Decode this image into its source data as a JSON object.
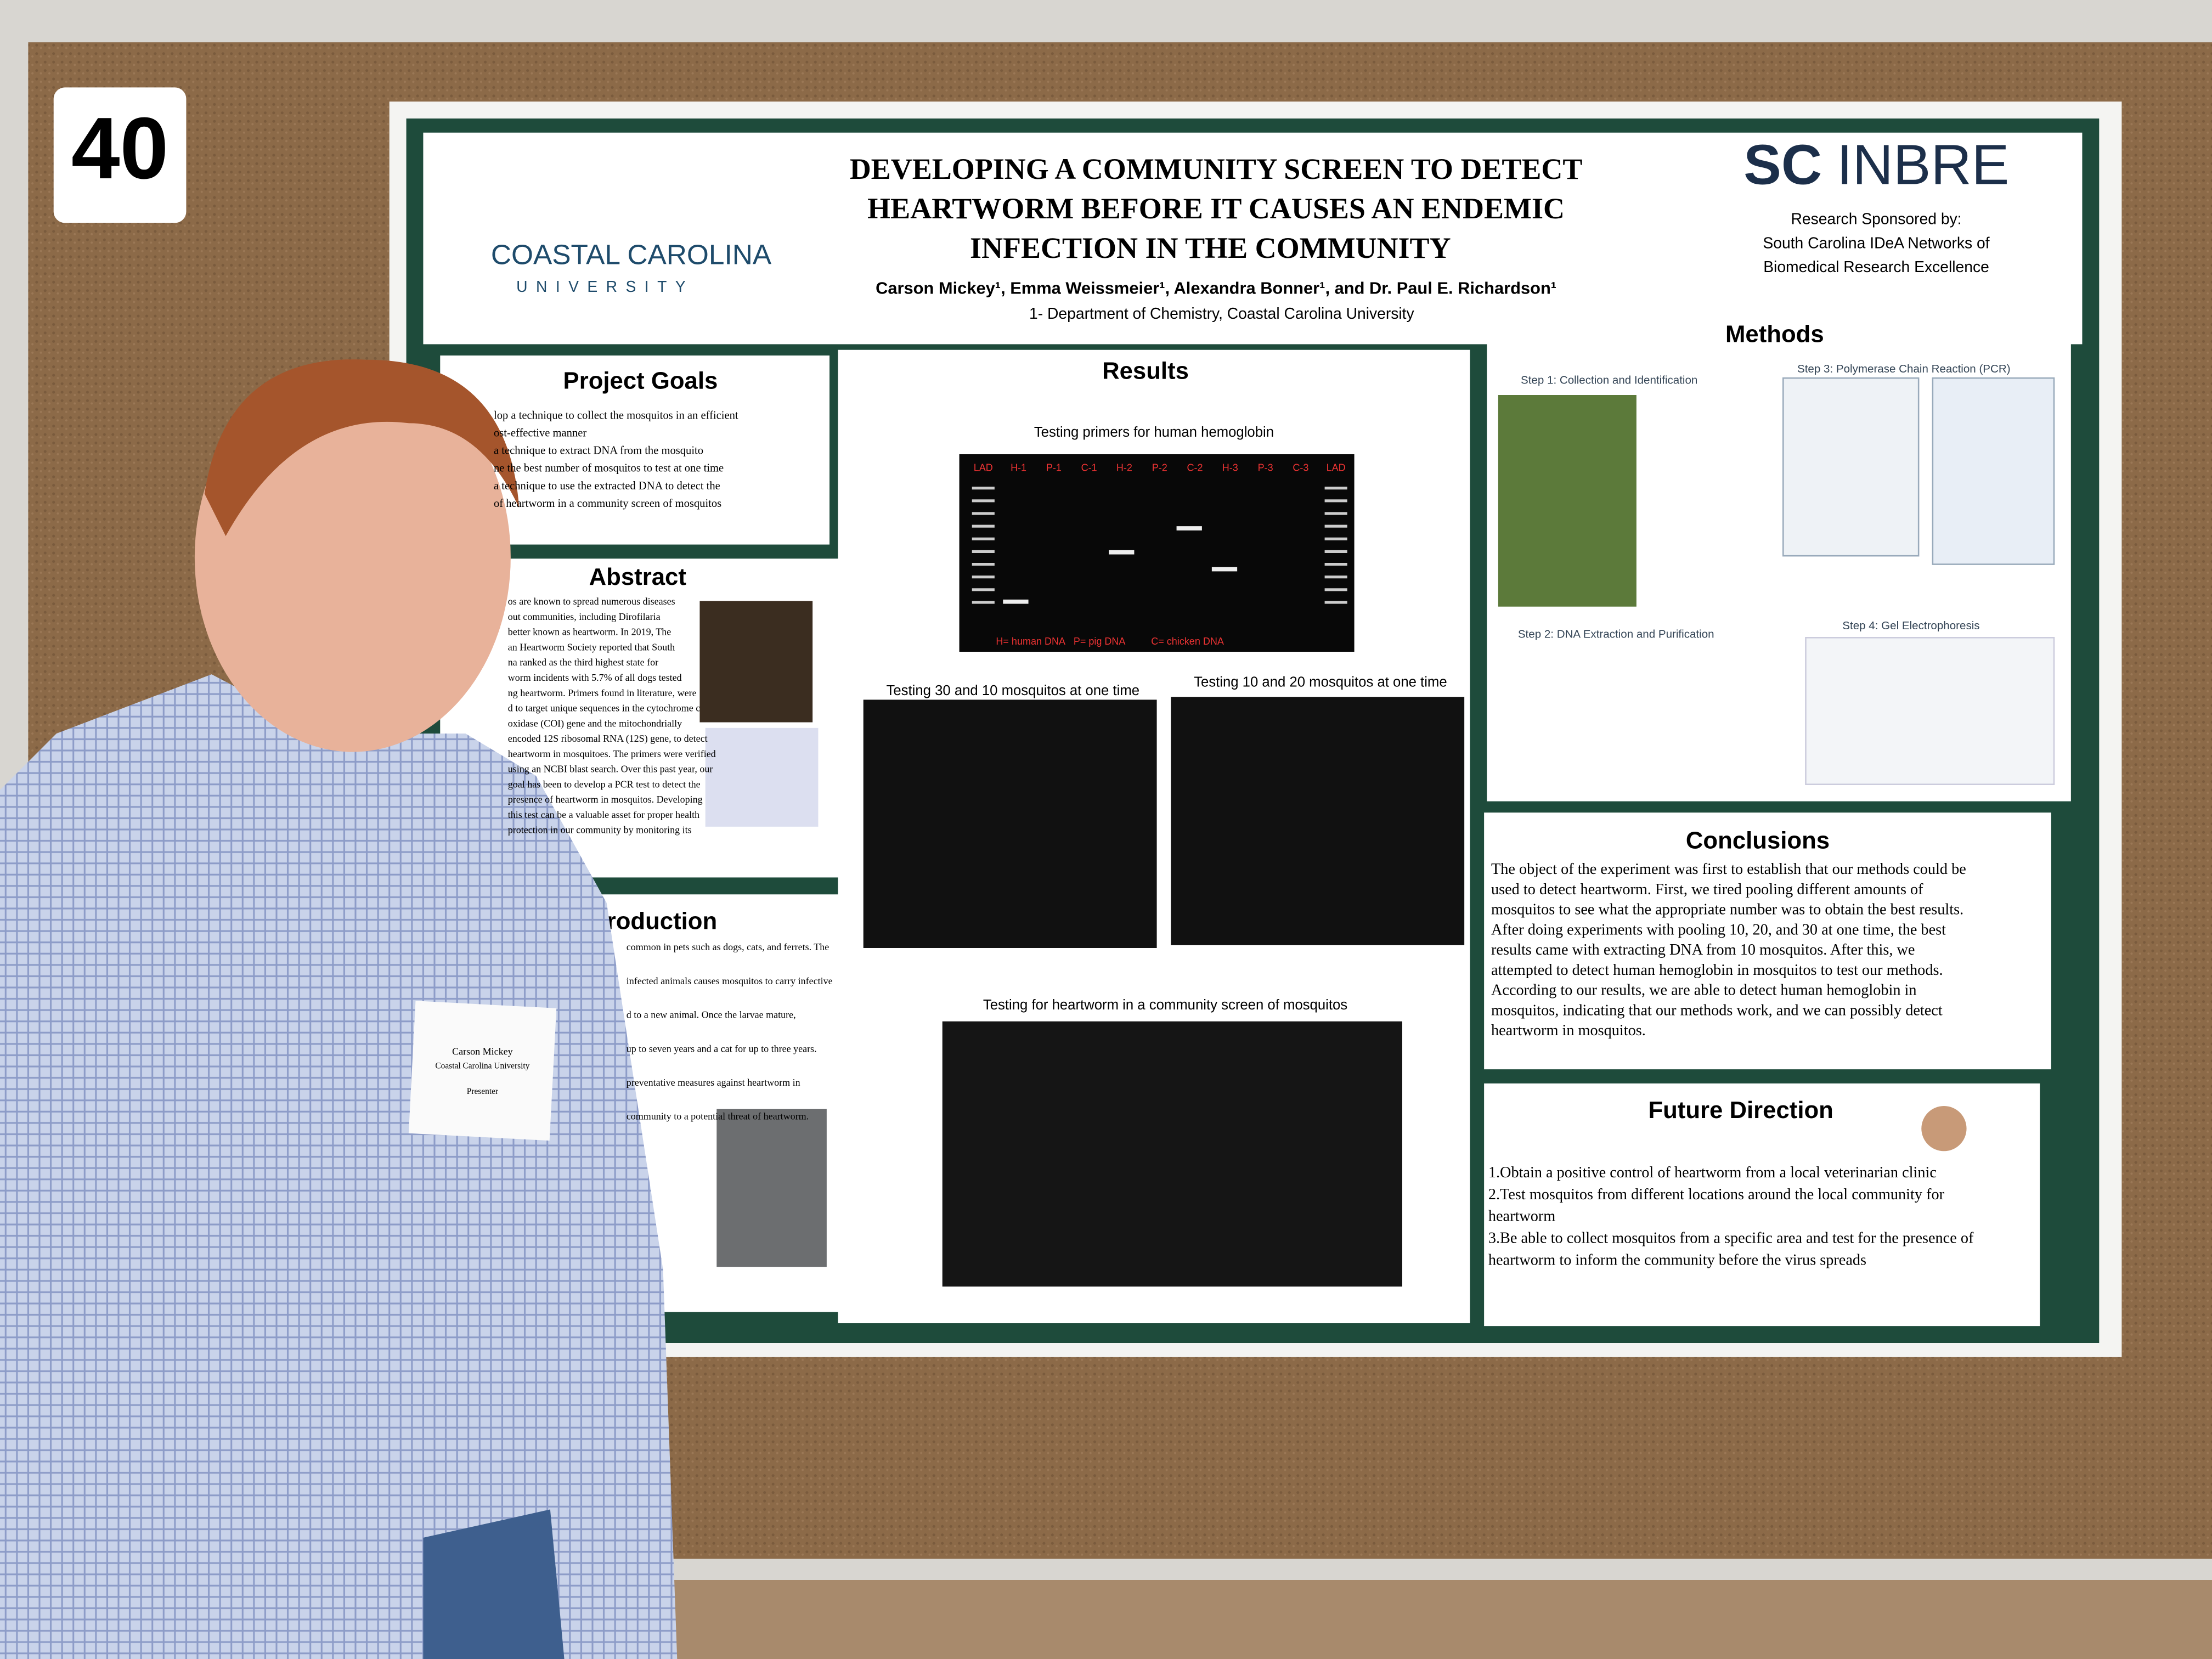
{
  "sign": "40",
  "poster": {
    "title_lines": [
      "DEVELOPING A COMMUNITY SCREEN TO DETECT",
      "HEARTWORM BEFORE IT CAUSES AN ENDEMIC",
      "INFECTION IN THE COMMUNITY"
    ],
    "authors": "Carson Mickey¹, Emma Weissmeier¹, Alexandra Bonner¹, and Dr. Paul E. Richardson¹",
    "affiliation": "1- Department of Chemistry, Coastal Carolina University",
    "logo_left": [
      "COASTAL CAROLINA",
      "UNIVERSITY"
    ],
    "logo_right": [
      "SC",
      "INBRE"
    ],
    "sponsor": [
      "Research Sponsored by:",
      "South Carolina IDeA Networks of",
      "Biomedical Research Excellence"
    ],
    "goals": {
      "heading": "Project Goals",
      "lines": [
        "lop a technique to collect the mosquitos in an efficient",
        "ost-effective manner",
        "a technique to extract DNA from the mosquito",
        "ne the best number of mosquitos to test at one time",
        "a technique to use the extracted DNA to detect the",
        "of heartworm in a community screen of mosquitos"
      ]
    },
    "abstract": {
      "heading": "Abstract",
      "lines": [
        "os are known to spread numerous diseases",
        "out communities, including Dirofilaria",
        "better known as heartworm. In 2019, The",
        "an Heartworm Society reported that South",
        "na ranked as the third highest state for",
        "worm incidents with 5.7% of all dogs tested",
        "ng heartworm. Primers found in literature, were",
        "d to target unique sequences in the cytochrome c",
        "oxidase (COI) gene and the mitochondrially",
        "encoded 12S ribosomal RNA (12S) gene, to detect",
        "heartworm in mosquitoes. The primers were verified",
        "using an NCBI blast search. Over this past year, our",
        "goal has been to develop a PCR test to detect the",
        "presence of heartworm in mosquitos. Developing",
        "this test can be a valuable asset for proper health",
        "protection in our community by monitoring its"
      ]
    },
    "introduction": {
      "heading": "roduction",
      "lines": [
        "common in pets such as dogs, cats, and ferrets. The",
        "infected animals causes mosquitos to carry infective",
        "d to a new animal. Once the larvae mature,",
        "up to seven years and a cat for up to three years.",
        "preventative measures against heartworm in",
        "community to a potential threat of heartworm."
      ]
    },
    "results": {
      "heading": "Results",
      "gel1": {
        "caption": "Testing primers for human hemoglobin",
        "lanes": [
          "LAD",
          "H-1",
          "P-1",
          "C-1",
          "H-2",
          "P-2",
          "C-2",
          "H-3",
          "P-3",
          "C-3",
          "LAD"
        ],
        "legend": [
          "H= human DNA",
          "P= pig DNA",
          "C= chicken DNA"
        ]
      },
      "gel2": {
        "caption": "Testing 30 and 10 mosquitos at one time"
      },
      "gel3": {
        "caption": "Testing 10 and 20 mosquitos at one time"
      },
      "gel4": {
        "caption": "Testing for heartworm in a community screen of mosquitos"
      }
    },
    "methods": {
      "heading": "Methods",
      "steps": [
        "Step 1: Collection and Identification",
        "Step 3: Polymerase Chain Reaction (PCR)",
        "Step 2: DNA Extraction and Purification",
        "Step 4: Gel Electrophoresis"
      ]
    },
    "conclusions": {
      "heading": "Conclusions",
      "lines": [
        "The object of the experiment was first to establish that our methods could be",
        "used to detect heartworm. First, we tired pooling different amounts of",
        "mosquitos to see what the appropriate number was to obtain the best results.",
        "After doing experiments with pooling 10, 20, and 30 at one time, the best",
        "results came with extracting DNA from 10 mosquitos. After this, we",
        "attempted to detect human hemoglobin in mosquitos to test our methods.",
        "According to our results, we are able to detect human hemoglobin in",
        "mosquitos, indicating that our methods work, and we can possibly detect",
        "heartworm in mosquitos."
      ]
    },
    "future": {
      "heading": "Future Direction",
      "lines": [
        "1.Obtain a positive control of heartworm from a local veterinarian clinic",
        "2.Test mosquitos from different locations around the local community for",
        "heartworm",
        "3.Be able to collect mosquitos from a specific area and test for the presence of",
        "heartworm to inform the community before the virus spreads"
      ]
    }
  },
  "name_tag": [
    "Carson Mickey",
    "Coastal Carolina University",
    "Presenter"
  ]
}
